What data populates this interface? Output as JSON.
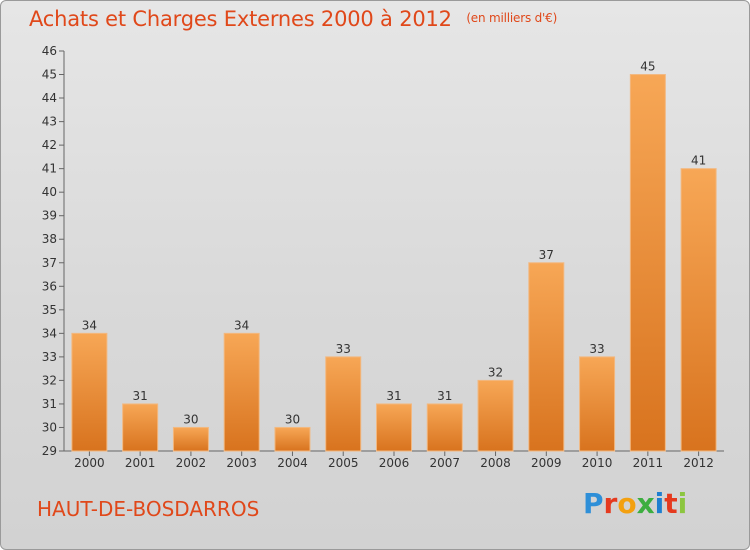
{
  "title": "Achats et Charges Externes 2000 à 2012",
  "unit_note": "(en milliers d'€)",
  "commune": "HAUT-DE-BOSDARROS",
  "brand": {
    "letters": [
      "P",
      "r",
      "o",
      "x",
      "i",
      "t",
      "i"
    ],
    "colors": [
      "#2e8fd8",
      "#e53a1f",
      "#f3a00f",
      "#3cae3f",
      "#1f7fd0",
      "#e53a1f",
      "#8cc63f"
    ]
  },
  "colors": {
    "bar_light": "#f7a756",
    "bar_dark": "#d8731e",
    "title": "#e0481a"
  },
  "chart_data": {
    "type": "bar",
    "categories": [
      "2000",
      "2001",
      "2002",
      "2003",
      "2004",
      "2005",
      "2006",
      "2007",
      "2008",
      "2009",
      "2010",
      "2011",
      "2012"
    ],
    "values": [
      34,
      31,
      30,
      34,
      30,
      33,
      31,
      31,
      32,
      37,
      33,
      45,
      41
    ],
    "xlabel": "",
    "ylabel": "",
    "ylim": [
      29,
      46
    ],
    "yticks": [
      29,
      30,
      31,
      32,
      33,
      34,
      35,
      36,
      37,
      38,
      39,
      40,
      41,
      42,
      43,
      44,
      45,
      46
    ],
    "grid": false,
    "legend": "none"
  }
}
